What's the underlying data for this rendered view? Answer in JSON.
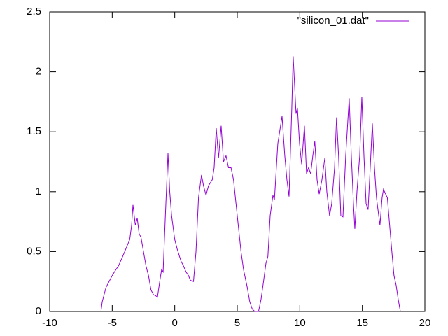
{
  "chart_data": {
    "type": "line",
    "xlim": [
      -10,
      20
    ],
    "ylim": [
      0,
      2.5
    ],
    "xticks": [
      -10,
      -5,
      0,
      5,
      10,
      15,
      20
    ],
    "yticks": [
      0,
      0.5,
      1,
      1.5,
      2,
      2.5
    ],
    "legend": "top-right",
    "series": [
      {
        "name": "\"silicon_01.dat\"",
        "color": "#9400d3",
        "x": [
          -5.9,
          -5.8,
          -5.5,
          -5.0,
          -4.7,
          -4.5,
          -4.2,
          -4.0,
          -3.8,
          -3.6,
          -3.45,
          -3.34,
          -3.15,
          -3.0,
          -2.85,
          -2.7,
          -2.5,
          -2.3,
          -2.1,
          -1.9,
          -1.7,
          -1.5,
          -1.38,
          -1.2,
          -1.05,
          -0.93,
          -0.75,
          -0.54,
          -0.4,
          -0.25,
          0.0,
          0.2,
          0.5,
          0.7,
          0.9,
          1.1,
          1.25,
          1.5,
          1.7,
          1.9,
          2.14,
          2.3,
          2.5,
          2.7,
          3.0,
          3.15,
          3.32,
          3.5,
          3.71,
          3.9,
          4.1,
          4.3,
          4.5,
          4.7,
          4.9,
          5.1,
          5.3,
          5.5,
          5.8,
          6.0,
          6.2,
          6.4,
          6.7,
          6.9,
          7.1,
          7.29,
          7.45,
          7.63,
          7.85,
          7.97,
          8.24,
          8.58,
          8.8,
          8.97,
          9.14,
          9.36,
          9.47,
          9.7,
          9.81,
          9.98,
          10.15,
          10.37,
          10.54,
          10.7,
          10.87,
          11.04,
          11.2,
          11.38,
          11.55,
          11.77,
          12.0,
          12.16,
          12.38,
          12.55,
          12.78,
          12.94,
          13.1,
          13.28,
          13.45,
          13.67,
          13.95,
          14.12,
          14.29,
          14.4,
          14.57,
          14.79,
          14.96,
          15.13,
          15.3,
          15.46,
          15.63,
          15.8,
          15.97,
          16.13,
          16.25,
          16.41,
          16.58,
          16.69,
          16.86,
          17.0,
          17.2,
          17.36,
          17.53,
          17.7,
          17.87,
          18.04
        ],
        "values": [
          0,
          0.08,
          0.2,
          0.3,
          0.35,
          0.38,
          0.45,
          0.5,
          0.55,
          0.6,
          0.72,
          0.89,
          0.72,
          0.78,
          0.65,
          0.62,
          0.5,
          0.38,
          0.3,
          0.18,
          0.14,
          0.13,
          0.12,
          0.25,
          0.35,
          0.33,
          0.8,
          1.32,
          1.0,
          0.8,
          0.6,
          0.52,
          0.42,
          0.38,
          0.33,
          0.3,
          0.26,
          0.25,
          0.5,
          0.95,
          1.14,
          1.05,
          0.97,
          1.05,
          1.1,
          1.2,
          1.53,
          1.28,
          1.55,
          1.25,
          1.3,
          1.2,
          1.2,
          1.1,
          0.9,
          0.7,
          0.5,
          0.35,
          0.2,
          0.08,
          0.02,
          0,
          0,
          0.1,
          0.25,
          0.4,
          0.46,
          0.8,
          0.97,
          0.93,
          1.4,
          1.63,
          1.3,
          1.1,
          0.96,
          1.7,
          2.13,
          1.65,
          1.7,
          1.4,
          1.23,
          1.55,
          1.15,
          1.2,
          1.15,
          1.3,
          1.42,
          1.1,
          0.98,
          1.1,
          1.28,
          1.0,
          0.8,
          0.9,
          1.2,
          1.62,
          1.3,
          0.8,
          0.79,
          1.3,
          1.78,
          1.3,
          0.9,
          0.69,
          1.0,
          1.3,
          1.79,
          1.3,
          0.9,
          0.85,
          1.2,
          1.57,
          1.2,
          0.95,
          0.85,
          0.72,
          0.95,
          1.02,
          0.98,
          0.95,
          0.7,
          0.5,
          0.3,
          0.22,
          0.1,
          0
        ]
      }
    ]
  }
}
